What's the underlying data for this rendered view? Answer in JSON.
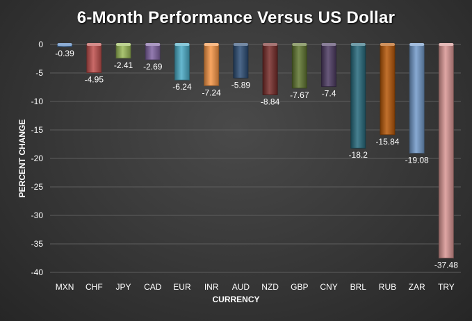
{
  "chart_data": {
    "type": "bar",
    "title": "6-Month Performance Versus US Dollar",
    "xlabel": "CURRENCY",
    "ylabel": "PERCENT CHANGE",
    "ylim": [
      -40,
      0
    ],
    "yticks": [
      0,
      -5,
      -10,
      -15,
      -20,
      -25,
      -30,
      -35,
      -40
    ],
    "grid": true,
    "legend": "none",
    "categories": [
      "MXN",
      "CHF",
      "JPY",
      "CAD",
      "EUR",
      "INR",
      "AUD",
      "NZD",
      "GBP",
      "CNY",
      "BRL",
      "RUB",
      "ZAR",
      "TRY"
    ],
    "values": [
      -0.39,
      -4.95,
      -2.41,
      -2.69,
      -6.24,
      -7.24,
      -5.89,
      -8.84,
      -7.67,
      -7.4,
      -18.2,
      -15.84,
      -19.08,
      -37.48
    ],
    "colors": [
      "#4f81bd",
      "#c0504d",
      "#9bbb59",
      "#8064a2",
      "#4bacc6",
      "#f79646",
      "#2c4d75",
      "#772c2a",
      "#5f7530",
      "#4d3b62",
      "#276a7c",
      "#b65708",
      "#729aca",
      "#d99694"
    ]
  }
}
